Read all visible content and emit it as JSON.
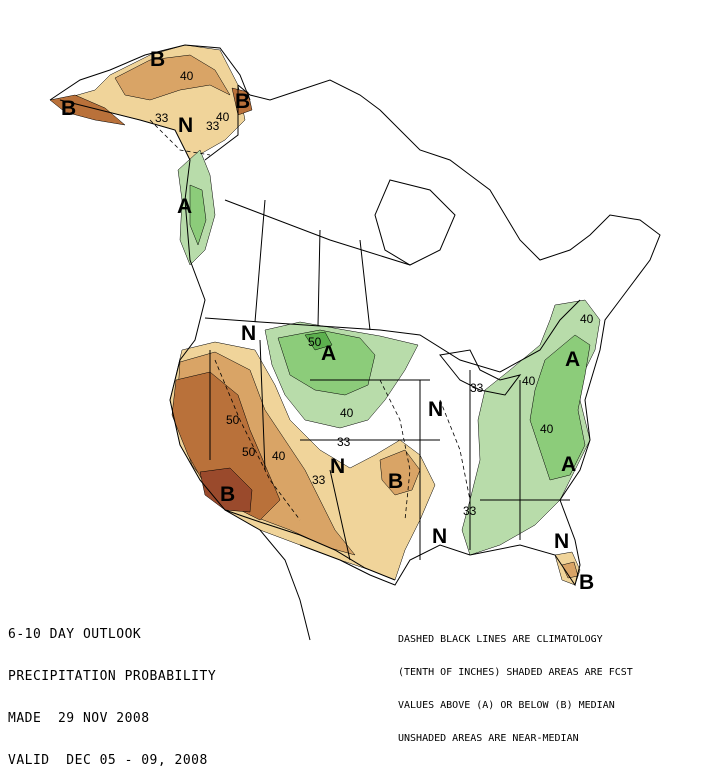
{
  "outlook": {
    "lines": [
      "6-10 DAY OUTLOOK",
      "PRECIPITATION PROBABILITY",
      "MADE  29 NOV 2008",
      "VALID  DEC 05 - 09, 2008"
    ]
  },
  "legend": {
    "lines": [
      "DASHED BLACK LINES ARE CLIMATOLOGY",
      "(TENTH OF INCHES) SHADED AREAS ARE FCST",
      "VALUES ABOVE (A) OR BELOW (B) MEDIAN",
      "UNSHADED AREAS ARE NEAR-MEDIAN"
    ]
  },
  "colors": {
    "below_33": "#f0d49a",
    "below_40": "#d9a466",
    "below_50": "#b9713a",
    "below_60": "#9a4a2c",
    "above_33": "#b8dcaa",
    "above_40": "#8ccc7a",
    "above_50": "#5cb04e",
    "land": "#ffffff",
    "lines": "#000000"
  },
  "region_labels": {
    "alaska_b_north": "B",
    "alaska_b_west": "B",
    "alaska_b_east": "B",
    "alaska_n": "N",
    "pacific_nw_a": "A",
    "northwest_n": "N",
    "northern_plains_a": "A",
    "great_lakes_n": "N",
    "central_n": "N",
    "southwest_b": "B",
    "south_plains_b": "B",
    "gulf_n": "N",
    "northeast_a": "A",
    "southeast_a": "A",
    "florida_n": "N",
    "florida_b": "B"
  },
  "contour_labels": {
    "ak_40_top": "40",
    "ak_33_west": "33",
    "ak_33_east": "33",
    "ak_40_east": "40",
    "np_50": "50",
    "np_40": "40",
    "sw_50a": "50",
    "sw_50b": "50",
    "sw_40": "40",
    "sw_33": "33",
    "c_33": "33",
    "gl_33": "33",
    "ne_40a": "40",
    "ne_40b": "40",
    "ne_40c": "40",
    "se_33": "33"
  }
}
